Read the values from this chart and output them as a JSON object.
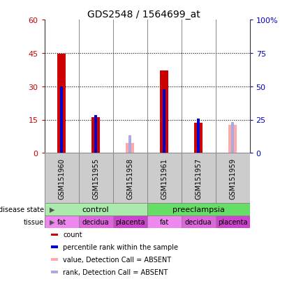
{
  "title": "GDS2548 / 1564699_at",
  "samples": [
    "GSM151960",
    "GSM151955",
    "GSM151958",
    "GSM151961",
    "GSM151957",
    "GSM151959"
  ],
  "count_values": [
    44.5,
    16.0,
    null,
    37.0,
    13.5,
    null
  ],
  "percentile_values": [
    30.0,
    17.0,
    null,
    28.5,
    15.5,
    null
  ],
  "absent_count_values": [
    null,
    null,
    4.5,
    null,
    null,
    12.5
  ],
  "absent_rank_values": [
    null,
    null,
    8.0,
    null,
    null,
    14.0
  ],
  "left_yticks": [
    0,
    15,
    30,
    45,
    60
  ],
  "right_yticks": [
    0,
    25,
    50,
    75,
    100
  ],
  "right_ytick_labels": [
    "0",
    "25",
    "50",
    "75",
    "100%"
  ],
  "ylim_left": [
    0,
    60
  ],
  "ylim_right": [
    0,
    100
  ],
  "count_color": "#cc0000",
  "percentile_color": "#0000cc",
  "absent_count_color": "#ffaaaa",
  "absent_rank_color": "#aaaadd",
  "left_ylabel_color": "#cc0000",
  "right_ylabel_color": "#0000cc",
  "bg_color": "#cccccc",
  "panel_bg": "#ffffff",
  "control_color": "#aaeaaa",
  "preeclampsia_color": "#66dd66",
  "fat_color": "#ee88ee",
  "decidua_color": "#dd66dd",
  "placenta_color": "#cc44cc",
  "tissues": [
    "fat",
    "decidua",
    "placenta",
    "fat",
    "decidua",
    "placenta"
  ],
  "disease_states": [
    "control",
    "control",
    "control",
    "preeclampsia",
    "preeclampsia",
    "preeclampsia"
  ],
  "legend_items": [
    {
      "color": "#cc0000",
      "label": "count"
    },
    {
      "color": "#0000cc",
      "label": "percentile rank within the sample"
    },
    {
      "color": "#ffaaaa",
      "label": "value, Detection Call = ABSENT"
    },
    {
      "color": "#aaaadd",
      "label": "rank, Detection Call = ABSENT"
    }
  ]
}
